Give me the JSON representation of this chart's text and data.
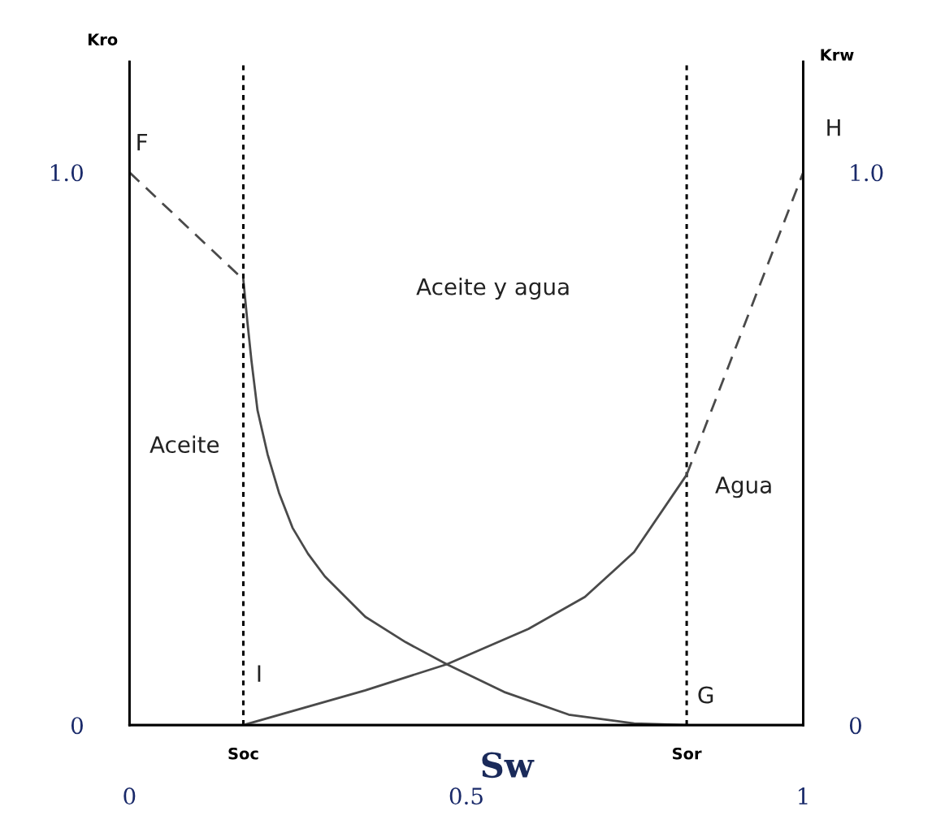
{
  "chart_data": {
    "type": "line",
    "xlabel": "Sw",
    "ylabel": "Kro",
    "y2label": "Krw",
    "xlim": [
      0,
      1
    ],
    "xticks": [
      0,
      0.5,
      1
    ],
    "ylim": [
      0,
      1.2
    ],
    "yticks": [
      0,
      {
        "value": 1,
        "label": "1.0"
      }
    ],
    "y2lim": [
      0,
      1.2
    ],
    "y2ticks": [
      0,
      {
        "value": 1,
        "label": "1.0"
      }
    ],
    "grid": false,
    "legend": false,
    "marker": "none",
    "series": [
      {
        "color": "#4a4a4a",
        "line_style": "dashed",
        "x": [
          0,
          0.169
        ],
        "values": [
          1.0,
          0.806
        ]
      },
      {
        "color": "#4a4a4a",
        "line_style": "solid",
        "x": [
          0.169,
          0.175,
          0.181,
          0.19,
          0.205,
          0.222,
          0.242,
          0.265,
          0.29,
          0.35,
          0.41,
          0.471,
          0.556,
          0.652,
          0.749,
          0.827
        ],
        "values": [
          0.806,
          0.73,
          0.66,
          0.57,
          0.49,
          0.42,
          0.357,
          0.31,
          0.269,
          0.196,
          0.15,
          0.11,
          0.06,
          0.019,
          0.003,
          0
        ]
      },
      {
        "color": "#4a4a4a",
        "line_style": "solid",
        "axis": "y2",
        "x": [
          0.169,
          0.35,
          0.471,
          0.592,
          0.676,
          0.749,
          0.827
        ],
        "values": [
          0,
          0.063,
          0.11,
          0.174,
          0.232,
          0.313,
          0.453
        ]
      },
      {
        "color": "#4a4a4a",
        "line_style": "dashed",
        "axis": "y2",
        "x": [
          0.827,
          1.0
        ],
        "values": [
          0.453,
          1.0
        ]
      }
    ],
    "ref_lines": [
      {
        "axis": "x",
        "value": 0.169,
        "label": "Soc",
        "color": "#000000",
        "line_style": "dotted"
      },
      {
        "axis": "x",
        "value": 0.827,
        "label": "Sor",
        "color": "#000000",
        "line_style": "dotted"
      }
    ],
    "annotations": [
      {
        "text": "F",
        "x": 0,
        "y": 1.0
      },
      {
        "text": "H",
        "x": 1.0,
        "y": 1.0
      },
      {
        "text": "I",
        "x": 0.169,
        "y": 0
      },
      {
        "text": "G",
        "x": 0.827,
        "y": 0
      },
      "Aceite y agua",
      "Aceite",
      "Agua"
    ]
  }
}
